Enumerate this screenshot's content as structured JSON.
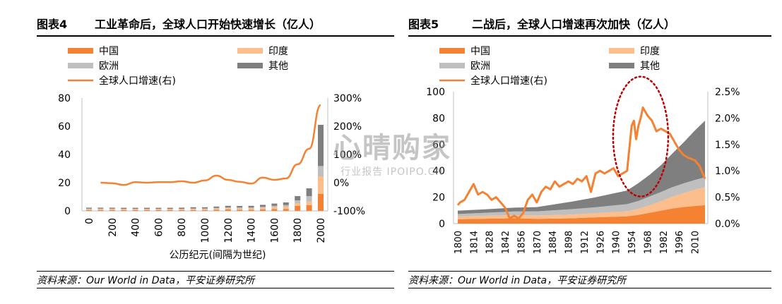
{
  "figures": [
    {
      "label": "图表4",
      "title": "工业革命后，全球人口开始快速增长（亿人）",
      "source": "资料来源：Our World in Data，平安证券研究所"
    },
    {
      "label": "图表5",
      "title": "二战后，全球人口增速再次加快（亿人）",
      "source": "资料来源：Our World in Data，平安证券研究所"
    }
  ],
  "watermark": {
    "main": "心晴购家",
    "sub": "行业报告 IPOIPO.CN"
  },
  "colors": {
    "china": "#F58232",
    "india": "#FBBE8C",
    "europe": "#BFBFBF",
    "other": "#7F7F7F",
    "growth": "#F58232",
    "circle": "#C00000"
  },
  "chart_data": [
    {
      "type": "bar",
      "stacked": true,
      "xlabel": "公历纪元(间隔为世纪)",
      "x_ticks": [
        "0",
        "200",
        "400",
        "600",
        "800",
        "1000",
        "1200",
        "1400",
        "1600",
        "1800",
        "2000"
      ],
      "y_left": {
        "lim": [
          0,
          80
        ],
        "ticks": [
          "0",
          "20",
          "40",
          "60",
          "80"
        ]
      },
      "y_right": {
        "lim": [
          -100,
          300
        ],
        "ticks": [
          "-100%",
          "0%",
          "100%",
          "200%",
          "300%"
        ]
      },
      "legend": [
        "中国",
        "印度",
        "欧洲",
        "其他",
        "全球人口增速(右)"
      ],
      "categories": [
        0,
        100,
        200,
        300,
        400,
        500,
        600,
        700,
        800,
        900,
        1000,
        1100,
        1200,
        1300,
        1400,
        1500,
        1600,
        1700,
        1800,
        1900,
        2000
      ],
      "series": [
        {
          "name": "中国",
          "values": [
            0.6,
            0.6,
            0.6,
            0.5,
            0.5,
            0.5,
            0.5,
            0.5,
            0.5,
            0.6,
            0.6,
            0.8,
            1.0,
            0.8,
            0.8,
            1.0,
            1.3,
            1.4,
            3.5,
            4.0,
            12.0
          ]
        },
        {
          "name": "印度",
          "values": [
            0.6,
            0.6,
            0.6,
            0.6,
            0.6,
            0.6,
            0.6,
            0.6,
            0.6,
            0.7,
            0.7,
            0.8,
            0.9,
            0.9,
            1.0,
            1.1,
            1.4,
            1.6,
            2.0,
            2.7,
            12.5
          ]
        },
        {
          "name": "欧洲",
          "values": [
            0.4,
            0.4,
            0.4,
            0.4,
            0.4,
            0.4,
            0.4,
            0.4,
            0.4,
            0.4,
            0.4,
            0.5,
            0.6,
            0.7,
            0.6,
            0.8,
            0.9,
            1.1,
            2.0,
            3.8,
            7.3
          ]
        },
        {
          "name": "其他",
          "values": [
            0.7,
            0.7,
            0.7,
            0.7,
            0.7,
            0.7,
            0.7,
            0.7,
            0.8,
            0.9,
            0.9,
            1.0,
            1.1,
            1.1,
            1.2,
            1.4,
            1.6,
            1.9,
            3.0,
            5.5,
            29.2
          ]
        },
        {
          "name": "全球人口增速(右)",
          "axis": "right",
          "x": [
            100,
            200,
            300,
            400,
            500,
            600,
            700,
            800,
            900,
            1000,
            1100,
            1200,
            1300,
            1400,
            1500,
            1600,
            1700,
            1800,
            1900,
            2000
          ],
          "values": [
            0,
            -2,
            -8,
            2,
            0,
            2,
            2,
            5,
            0,
            8,
            25,
            10,
            3,
            -3,
            18,
            10,
            15,
            65,
            120,
            275
          ]
        }
      ]
    },
    {
      "type": "area",
      "stacked": true,
      "x_ticks": [
        "1800",
        "1814",
        "1828",
        "1842",
        "1856",
        "1870",
        "1884",
        "1898",
        "1912",
        "1926",
        "1940",
        "1954",
        "1968",
        "1982",
        "1996",
        "2010"
      ],
      "y_left": {
        "lim": [
          0,
          100
        ],
        "ticks": [
          "0",
          "20",
          "40",
          "60",
          "80",
          "100"
        ]
      },
      "y_right": {
        "lim": [
          0,
          2.5
        ],
        "ticks": [
          "0.0%",
          "0.5%",
          "1.0%",
          "1.5%",
          "2.0%",
          "2.5%"
        ]
      },
      "legend": [
        "中国",
        "印度",
        "欧洲",
        "其他",
        "全球人口增速(右)"
      ],
      "x": [
        1800,
        1820,
        1850,
        1870,
        1900,
        1920,
        1950,
        1960,
        1970,
        1980,
        1990,
        2000,
        2010,
        2019
      ],
      "series": [
        {
          "name": "中国",
          "values": [
            3.3,
            3.6,
            4.1,
            3.6,
            4.0,
            4.7,
            5.5,
            6.6,
            8.2,
            9.8,
            11.4,
            12.6,
            13.4,
            14.0
          ]
        },
        {
          "name": "印度",
          "values": [
            2.1,
            2.2,
            2.4,
            2.6,
            2.8,
            3.1,
            3.8,
            4.6,
            5.8,
            7.2,
            9.0,
            10.6,
            12.3,
            13.6
          ]
        },
        {
          "name": "欧洲",
          "values": [
            1.9,
            2.2,
            2.7,
            3.1,
            4.1,
            4.4,
            5.5,
            6.0,
            6.6,
            6.9,
            7.2,
            7.3,
            7.4,
            7.5
          ]
        },
        {
          "name": "其他",
          "values": [
            2.5,
            2.6,
            2.9,
            3.2,
            5.6,
            7.4,
            10.3,
            13.5,
            16.4,
            20.4,
            25.5,
            31.0,
            37.5,
            42.9
          ]
        },
        {
          "name": "全球人口增速(右)",
          "axis": "right",
          "x": [
            1800,
            1802,
            1806,
            1810,
            1814,
            1818,
            1822,
            1826,
            1830,
            1834,
            1838,
            1842,
            1846,
            1850,
            1854,
            1858,
            1862,
            1866,
            1870,
            1874,
            1878,
            1882,
            1886,
            1890,
            1894,
            1898,
            1902,
            1906,
            1910,
            1914,
            1918,
            1922,
            1926,
            1930,
            1934,
            1938,
            1942,
            1946,
            1950,
            1954,
            1956,
            1958,
            1960,
            1962,
            1964,
            1968,
            1972,
            1976,
            1980,
            1984,
            1988,
            1992,
            1996,
            2000,
            2004,
            2010,
            2014,
            2019
          ],
          "values": [
            0.35,
            0.4,
            0.45,
            0.6,
            0.75,
            0.55,
            0.6,
            0.55,
            0.45,
            0.5,
            0.4,
            0.3,
            0.1,
            0.15,
            0.1,
            0.2,
            0.45,
            0.55,
            0.4,
            0.6,
            0.7,
            0.65,
            0.8,
            0.7,
            0.75,
            0.8,
            0.75,
            0.85,
            0.8,
            0.9,
            0.6,
            0.95,
            1.0,
            0.95,
            1.0,
            1.05,
            0.9,
            0.95,
            1.0,
            1.85,
            1.95,
            1.6,
            1.85,
            2.0,
            2.2,
            2.05,
            1.95,
            1.75,
            1.8,
            1.75,
            1.7,
            1.55,
            1.4,
            1.3,
            1.25,
            1.2,
            1.1,
            0.85
          ]
        }
      ],
      "annotation": "dotted ellipse highlighting 1950–1975 peak"
    }
  ]
}
